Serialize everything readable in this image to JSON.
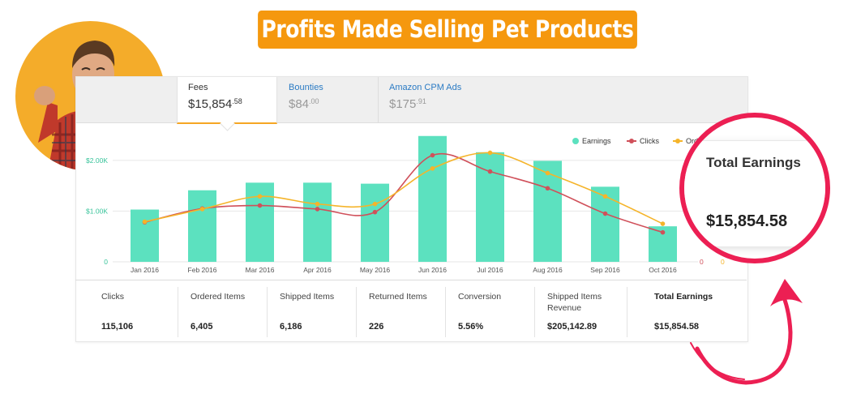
{
  "banner": {
    "title": "Profits Made Selling Pet Products"
  },
  "tabs": [
    {
      "label": "Fees",
      "currency": "$",
      "whole": "15,854",
      "cents": ".58",
      "active": true
    },
    {
      "label": "Bounties",
      "currency": "$",
      "whole": "84",
      "cents": ".00",
      "active": false
    },
    {
      "label": "Amazon CPM Ads",
      "currency": "$",
      "whole": "175",
      "cents": ".91",
      "active": false
    }
  ],
  "legend": [
    {
      "name": "Earnings",
      "color": "#5ce1bf",
      "kind": "bar"
    },
    {
      "name": "Clicks",
      "color": "#d0505a",
      "kind": "line"
    },
    {
      "name": "Orde",
      "color": "#f5b42a",
      "kind": "line"
    }
  ],
  "chart_data": {
    "type": "bar",
    "categories": [
      "Jan 2016",
      "Feb 2016",
      "Mar 2016",
      "Apr 2016",
      "May 2016",
      "Jun 2016",
      "Jul 2016",
      "Aug 2016",
      "Sep 2016",
      "Oct 2016"
    ],
    "series": [
      {
        "name": "Earnings",
        "type": "bar",
        "color": "#5ce1bf",
        "values": [
          1030,
          1410,
          1560,
          1560,
          1540,
          2480,
          2160,
          1990,
          1480,
          700
        ]
      },
      {
        "name": "Clicks",
        "type": "line",
        "color": "#d0505a",
        "values": [
          780,
          1050,
          1110,
          1040,
          980,
          2100,
          1780,
          1450,
          950,
          580
        ]
      },
      {
        "name": "Orde",
        "type": "line",
        "color": "#f5b42a",
        "values": [
          790,
          1040,
          1290,
          1140,
          1140,
          1840,
          2150,
          1750,
          1290,
          750
        ]
      }
    ],
    "y_ticks": [
      "0",
      "$1.00K",
      "$2.00K"
    ],
    "right_ticks": [
      "0",
      "0"
    ],
    "ylim": [
      0,
      2700
    ],
    "grid": true
  },
  "stats": [
    {
      "label": "Clicks",
      "value": "115,106"
    },
    {
      "label": "Ordered Items",
      "value": "6,405"
    },
    {
      "label": "Shipped Items",
      "value": "6,186"
    },
    {
      "label": "Returned Items",
      "value": "226"
    },
    {
      "label": "Conversion",
      "value": "5.56%"
    },
    {
      "label": "Shipped Items Revenue",
      "value": "$205,142.89"
    },
    {
      "label": "Total Earnings",
      "value": "$15,854.58"
    }
  ],
  "callout": {
    "title": "Total Earnings",
    "value": "$15,854.58",
    "ring_color": "#ec1f53"
  }
}
